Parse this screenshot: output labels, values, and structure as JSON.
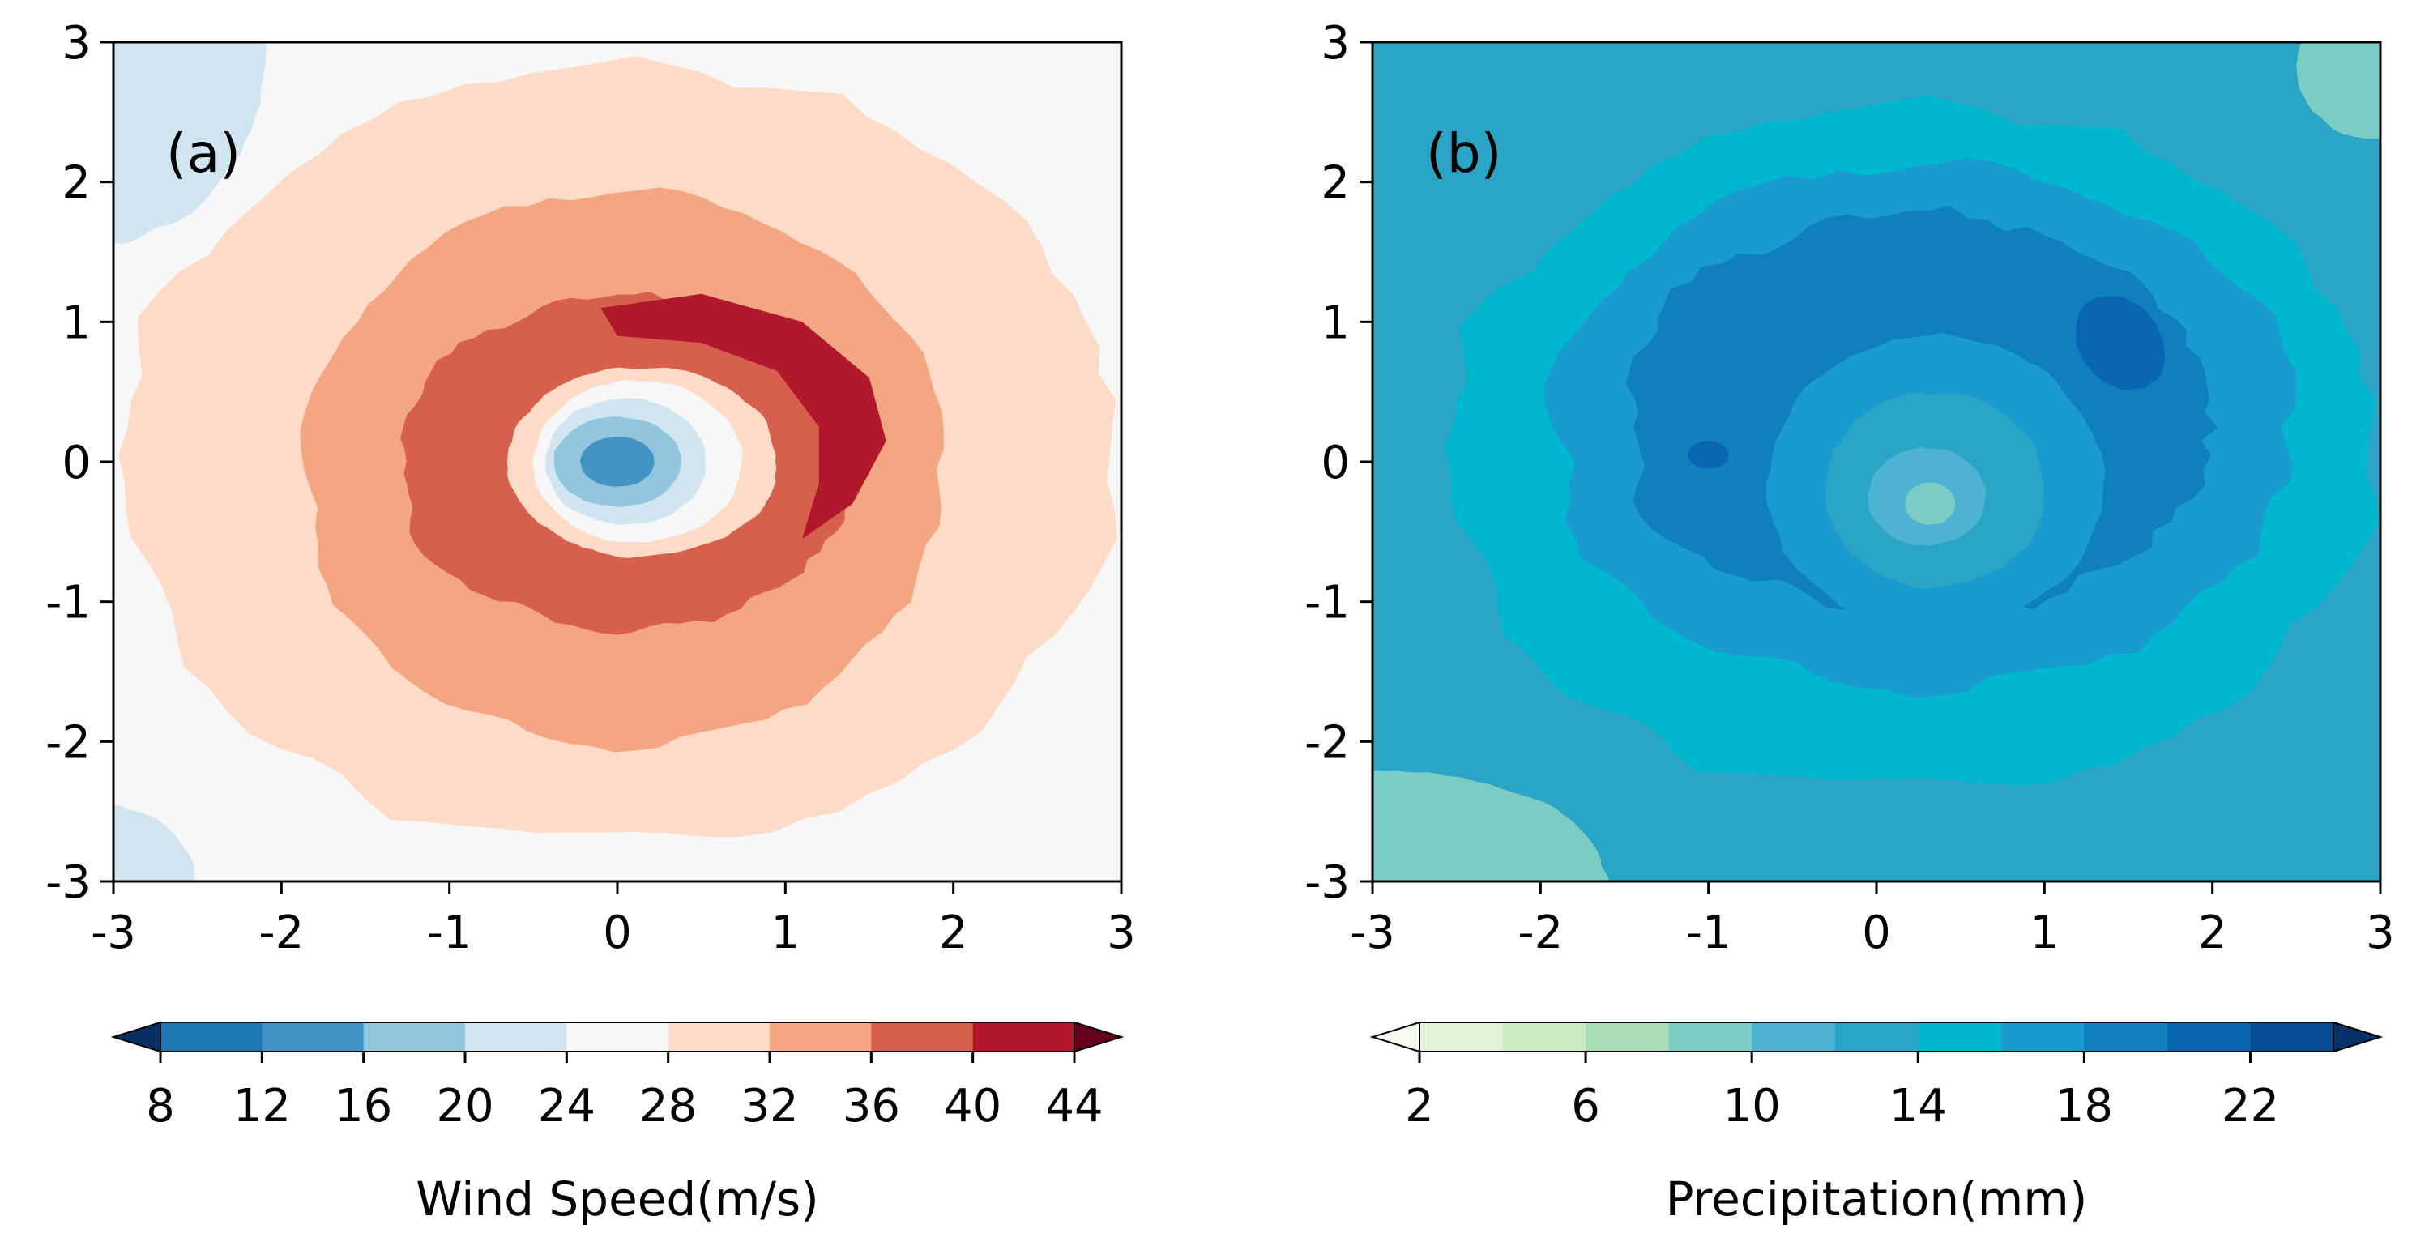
{
  "chart_data": [
    {
      "type": "heatmap",
      "panel_label": "(a)",
      "variable": "Wind Speed",
      "xlim": [
        -3,
        3
      ],
      "ylim": [
        -3,
        3
      ],
      "xticks": [
        "-3",
        "-2",
        "-1",
        "0",
        "1",
        "2",
        "3"
      ],
      "yticks": [
        "-3",
        "-2",
        "-1",
        "0",
        "1",
        "2",
        "3"
      ],
      "colorbar": {
        "label": "Wind Speed(m/s)",
        "levels": [
          8,
          12,
          16,
          20,
          24,
          28,
          32,
          36,
          40,
          44
        ],
        "tick_labels": [
          "8",
          "12",
          "16",
          "20",
          "24",
          "28",
          "32",
          "36",
          "40",
          "44"
        ],
        "extend": "both",
        "colors": [
          "#053061",
          "#1f78b4",
          "#4393c3",
          "#92c5de",
          "#d1e5f0",
          "#f7f7f7",
          "#fddbc7",
          "#f4a582",
          "#d6604d",
          "#b2182b",
          "#67001f"
        ]
      },
      "background_value": 26,
      "features": [
        {
          "kind": "ellipse",
          "cx": 0.0,
          "cy": 0.05,
          "rx": 2.95,
          "ry": 2.78,
          "rot": 0,
          "value": 30,
          "irregularity": 0.05
        },
        {
          "kind": "ellipse",
          "cx": 0.05,
          "cy": -0.05,
          "rx": 1.9,
          "ry": 2.0,
          "rot": 0,
          "value": 34,
          "irregularity": 0.05
        },
        {
          "kind": "ellipse",
          "cx": 0.05,
          "cy": 0.0,
          "rx": 1.35,
          "ry": 1.2,
          "rot": 0,
          "value": 38,
          "irregularity": 0.07
        },
        {
          "kind": "crescent",
          "points": [
            [
              -0.1,
              1.1
            ],
            [
              0.5,
              1.2
            ],
            [
              1.1,
              1.0
            ],
            [
              1.5,
              0.6
            ],
            [
              1.6,
              0.15
            ],
            [
              1.4,
              -0.3
            ],
            [
              1.1,
              -0.55
            ],
            [
              1.2,
              -0.15
            ],
            [
              1.2,
              0.25
            ],
            [
              0.95,
              0.65
            ],
            [
              0.5,
              0.85
            ],
            [
              0.0,
              0.9
            ],
            [
              -0.05,
              1.0
            ]
          ],
          "value": 42
        },
        {
          "kind": "ellipse",
          "cx": 0.15,
          "cy": 0.0,
          "rx": 0.8,
          "ry": 0.68,
          "rot": 0,
          "value": 28
        },
        {
          "kind": "ellipse",
          "cx": 0.12,
          "cy": 0.0,
          "rx": 0.62,
          "ry": 0.58,
          "rot": 0,
          "value": 26
        },
        {
          "kind": "ellipse",
          "cx": 0.05,
          "cy": 0.0,
          "rx": 0.48,
          "ry": 0.45,
          "rot": 0,
          "value": 22
        },
        {
          "kind": "ellipse",
          "cx": 0.0,
          "cy": 0.0,
          "rx": 0.38,
          "ry": 0.32,
          "rot": 0,
          "value": 18
        },
        {
          "kind": "ellipse",
          "cx": 0.0,
          "cy": 0.0,
          "rx": 0.22,
          "ry": 0.18,
          "rot": 0,
          "value": 14
        }
      ],
      "corner_features": [
        {
          "kind": "ellipse",
          "cx": -3.1,
          "cy": 2.95,
          "rx": 1.0,
          "ry": 1.4,
          "rot": 0,
          "value": 22
        },
        {
          "kind": "ellipse",
          "cx": -3.1,
          "cy": -3.05,
          "rx": 0.6,
          "ry": 0.6,
          "rot": 0,
          "value": 22
        }
      ]
    },
    {
      "type": "heatmap",
      "panel_label": "(b)",
      "variable": "Precipitation",
      "xlim": [
        -3,
        3
      ],
      "ylim": [
        -3,
        3
      ],
      "xticks": [
        "-3",
        "-2",
        "-1",
        "0",
        "1",
        "2",
        "3"
      ],
      "yticks": [
        "-3",
        "-2",
        "-1",
        "0",
        "1",
        "2",
        "3"
      ],
      "colorbar": {
        "label": "Precipitation(mm)",
        "levels": [
          2,
          4,
          6,
          8,
          10,
          12,
          14,
          16,
          18,
          20,
          22,
          24
        ],
        "tick_labels": [
          "2",
          "6",
          "10",
          "14",
          "18",
          "22"
        ],
        "tick_values": [
          2,
          6,
          10,
          14,
          18,
          22
        ],
        "extend": "both",
        "colors": [
          "#f7fcf0",
          "#e0f3db",
          "#ccebc5",
          "#a8ddb5",
          "#7bccc4",
          "#4eb3d3",
          "#2ba5c5",
          "#00b7d0",
          "#1a9bd0",
          "#0f7fc0",
          "#0a66b0",
          "#084a94",
          "#08306b"
        ]
      },
      "background_value": 13,
      "features": [
        {
          "kind": "ellipse",
          "cx": 0.2,
          "cy": 0.1,
          "rx": 2.75,
          "ry": 2.45,
          "rot": 0,
          "value": 15,
          "irregularity": 0.06
        },
        {
          "kind": "ellipse",
          "cx": 0.3,
          "cy": 0.25,
          "rx": 2.2,
          "ry": 1.9,
          "rot": 0,
          "value": 17,
          "irregularity": 0.08
        },
        {
          "kind": "ellipse",
          "cx": 0.25,
          "cy": 0.35,
          "rx": 1.75,
          "ry": 1.45,
          "rot": 0,
          "value": 19,
          "irregularity": 0.1
        },
        {
          "kind": "ellipse",
          "cx": 0.35,
          "cy": -0.15,
          "rx": 1.0,
          "ry": 1.05,
          "rot": 0,
          "value": 16
        },
        {
          "kind": "ellipse",
          "cx": 0.35,
          "cy": -0.2,
          "rx": 0.65,
          "ry": 0.7,
          "rot": 0,
          "value": 13
        },
        {
          "kind": "ellipse",
          "cx": 0.3,
          "cy": -0.25,
          "rx": 0.35,
          "ry": 0.35,
          "rot": 0,
          "value": 11
        },
        {
          "kind": "ellipse",
          "cx": 0.32,
          "cy": -0.3,
          "rx": 0.15,
          "ry": 0.15,
          "rot": 0,
          "value": 9
        },
        {
          "kind": "ellipse",
          "cx": 1.45,
          "cy": 0.85,
          "rx": 0.25,
          "ry": 0.35,
          "rot": 0.4,
          "value": 21
        },
        {
          "kind": "ellipse",
          "cx": -1.0,
          "cy": 0.05,
          "rx": 0.12,
          "ry": 0.1,
          "rot": 0,
          "value": 21
        }
      ],
      "corner_features": [
        {
          "kind": "ellipse",
          "cx": -3.0,
          "cy": -3.0,
          "rx": 1.4,
          "ry": 0.8,
          "rot": 0,
          "value": 9
        },
        {
          "kind": "ellipse",
          "cx": 3.0,
          "cy": 2.8,
          "rx": 0.5,
          "ry": 0.5,
          "rot": 0,
          "value": 9
        }
      ]
    }
  ]
}
